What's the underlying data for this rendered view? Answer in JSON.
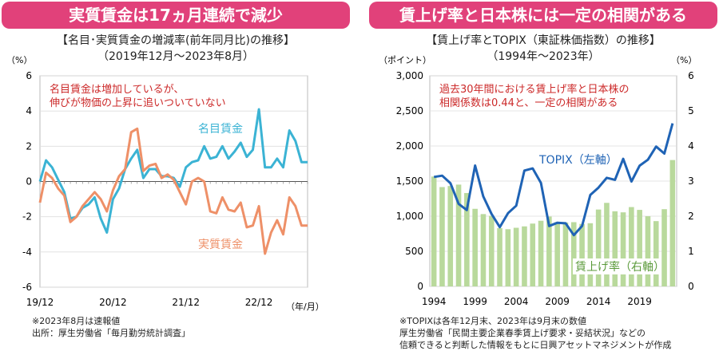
{
  "left": {
    "banner": "実質賃金は17ヵ月連続で減少",
    "subtitle1": "【名目･実質賃金の増減率(前年同月比)の推移】",
    "subtitle2": "（2019年12月～2023年8月）",
    "ylabel": "（%）",
    "xunit": "（年/月）",
    "annotation1": "名目賃金は増加しているが、",
    "annotation2": "伸びが物価の上昇に追いついていない",
    "notes": [
      "※2023年8月は速報値",
      "出所：厚生労働省「毎月勤労統計調査」"
    ]
  },
  "right": {
    "banner": "賃上げ率と日本株には一定の相関がある",
    "subtitle1": "【賃上げ率とTOPIX（東証株価指数）の推移】",
    "subtitle2": "（1994年～2023年）",
    "ylabel_left": "（ポイント）",
    "ylabel_right": "（%）",
    "annotation1": "過去30年間における賃上げ率と日本株の",
    "annotation2": "相関係数は0.44と、一定の相関がある",
    "notes": [
      "※TOPIXは各年12月末、2023年は9月末の数値",
      "厚生労働省「民間主要企業春季賃上げ要求・妥結状況」などの",
      "信頼できると判断した情報をもとに日興アセットマネジメントが作成"
    ]
  },
  "chart_data": [
    {
      "type": "line",
      "x": [
        "19/12",
        "20/01",
        "20/02",
        "20/03",
        "20/04",
        "20/05",
        "20/06",
        "20/07",
        "20/08",
        "20/09",
        "20/10",
        "20/11",
        "20/12",
        "21/01",
        "21/02",
        "21/03",
        "21/04",
        "21/05",
        "21/06",
        "21/07",
        "21/08",
        "21/09",
        "21/10",
        "21/11",
        "21/12",
        "22/01",
        "22/02",
        "22/03",
        "22/04",
        "22/05",
        "22/06",
        "22/07",
        "22/08",
        "22/09",
        "22/10",
        "22/11",
        "22/12",
        "23/01",
        "23/02",
        "23/03",
        "23/04",
        "23/05",
        "23/06",
        "23/07",
        "23/08"
      ],
      "xtick_labels": [
        "19/12",
        "20/12",
        "21/12",
        "22/12"
      ],
      "series": [
        {
          "name": "名目賃金",
          "color": "#3bb3d4",
          "values": [
            0.0,
            1.2,
            0.8,
            0.1,
            -0.6,
            -2.1,
            -2.0,
            -1.5,
            -1.3,
            -0.9,
            -2.1,
            -2.9,
            -1.0,
            -0.4,
            0.7,
            1.3,
            1.8,
            0.2,
            0.7,
            0.7,
            0.3,
            0.3,
            0.2,
            -0.3,
            0.8,
            1.1,
            1.2,
            2.0,
            1.3,
            1.4,
            2.0,
            1.3,
            1.7,
            2.2,
            1.4,
            1.8,
            4.1,
            0.8,
            0.8,
            1.3,
            0.8,
            2.9,
            2.3,
            1.1,
            1.1
          ]
        },
        {
          "name": "実質賃金",
          "color": "#ee9068",
          "values": [
            -1.2,
            0.5,
            0.2,
            -0.4,
            -0.8,
            -2.3,
            -2.0,
            -1.4,
            -1.0,
            -0.6,
            -1.0,
            -1.7,
            -0.5,
            0.3,
            0.7,
            2.8,
            3.0,
            0.6,
            0.9,
            1.0,
            0.2,
            0.4,
            0.1,
            -0.6,
            -1.3,
            0.0,
            0.2,
            0.0,
            -1.7,
            -1.8,
            -0.9,
            -1.6,
            -1.7,
            -1.2,
            -2.6,
            -2.5,
            -1.4,
            -4.1,
            -2.9,
            -2.2,
            -3.0,
            -0.9,
            -1.4,
            -2.5,
            -2.5
          ]
        }
      ],
      "ylim": [
        -6,
        6
      ],
      "yticks": [
        -6,
        -4,
        -2,
        0,
        2,
        4,
        6
      ],
      "grid": true,
      "legend": "inline labels"
    },
    {
      "type": "bar+line",
      "x": [
        1994,
        1995,
        1996,
        1997,
        1998,
        1999,
        2000,
        2001,
        2002,
        2003,
        2004,
        2005,
        2006,
        2007,
        2008,
        2009,
        2010,
        2011,
        2012,
        2013,
        2014,
        2015,
        2016,
        2017,
        2018,
        2019,
        2020,
        2021,
        2022,
        2023
      ],
      "xtick_labels": [
        "1994",
        "1999",
        "2004",
        "2009",
        "2014",
        "2019"
      ],
      "series": [
        {
          "name": "TOPIX（左軸）",
          "axis": "left",
          "type": "line",
          "color": "#1f63b5",
          "values": [
            1559,
            1577,
            1470,
            1175,
            1087,
            1722,
            1283,
            1032,
            844,
            1043,
            1150,
            1650,
            1681,
            1475,
            860,
            907,
            899,
            729,
            860,
            1302,
            1407,
            1547,
            1518,
            1817,
            1494,
            1721,
            1805,
            1992,
            1892,
            2323
          ]
        },
        {
          "name": "賃上げ率（右軸）",
          "axis": "right",
          "type": "bar",
          "color": "#b9d99c",
          "values": [
            3.13,
            2.83,
            2.86,
            2.9,
            2.66,
            2.21,
            2.06,
            2.01,
            1.66,
            1.63,
            1.67,
            1.71,
            1.79,
            1.87,
            1.99,
            1.83,
            1.82,
            1.83,
            1.78,
            1.8,
            2.19,
            2.38,
            2.14,
            2.11,
            2.26,
            2.18,
            2.0,
            1.86,
            2.2,
            3.6
          ]
        }
      ],
      "ylim_left": [
        0,
        3000
      ],
      "yticks_left": [
        0,
        500,
        1000,
        1500,
        2000,
        2500,
        3000
      ],
      "ylim_right": [
        0,
        6
      ],
      "yticks_right": [
        0,
        1,
        2,
        3,
        4,
        5,
        6
      ],
      "grid": true,
      "legend": "inline labels"
    }
  ]
}
